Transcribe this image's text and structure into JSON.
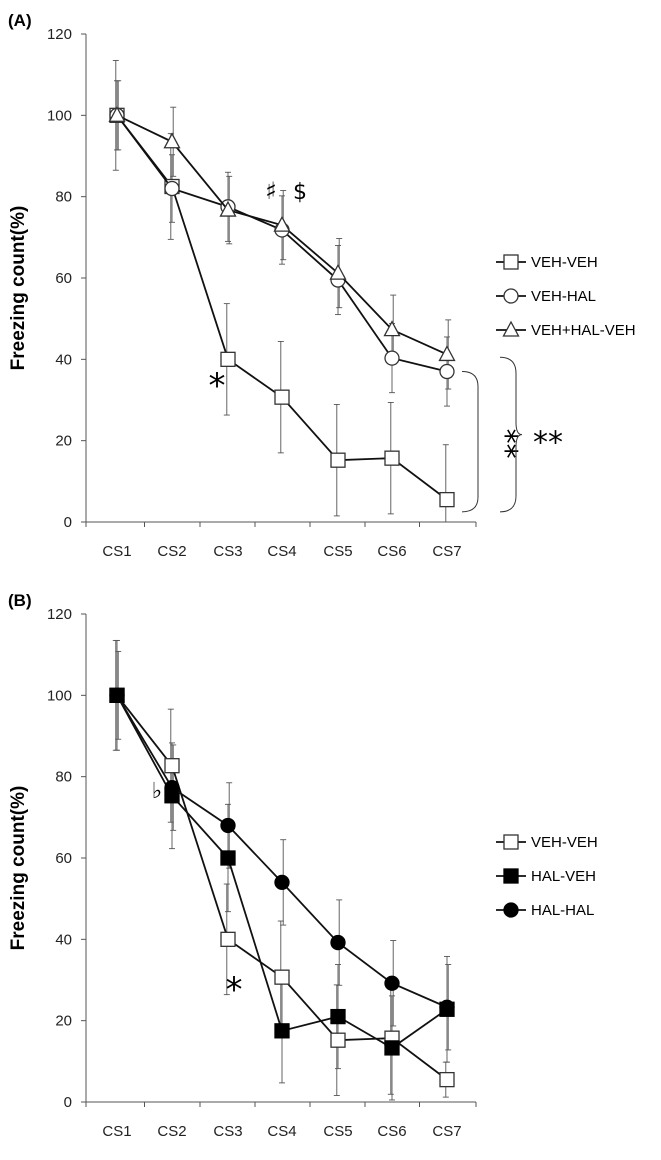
{
  "chart_data": [
    {
      "id": "A",
      "type": "line",
      "panel_label": "(A)",
      "ylabel": "Freezing count(%)",
      "xlabel": "",
      "ylim": [
        0,
        120
      ],
      "yticks": [
        0,
        20,
        40,
        60,
        80,
        100,
        120
      ],
      "categories": [
        "CS1",
        "CS2",
        "CS3",
        "CS4",
        "CS5",
        "CS6",
        "CS7"
      ],
      "legend_position": "right",
      "series": [
        {
          "name": "VEH-VEH",
          "marker": "square-open",
          "values": [
            100,
            82.5,
            40,
            30.7,
            15.2,
            15.7,
            5.5
          ],
          "errors": [
            13.5,
            13,
            13.7,
            13.7,
            13.7,
            13.7,
            13.5
          ]
        },
        {
          "name": "VEH-HAL",
          "marker": "circle-open",
          "values": [
            100,
            82,
            77.5,
            71.8,
            59.5,
            40.3,
            37
          ],
          "errors": [
            8.5,
            8.3,
            8.5,
            8.4,
            8.5,
            8.5,
            8.5
          ]
        },
        {
          "name": "VEH+HAL-VEH",
          "marker": "triangle-open",
          "values": [
            100,
            93.5,
            76.7,
            73,
            61.2,
            47.3,
            41.2
          ],
          "errors": [
            8.5,
            8.5,
            8.3,
            8.5,
            8.5,
            8.5,
            8.5
          ]
        }
      ],
      "annotations": [
        {
          "text": "*",
          "category": "CS3",
          "y": 33
        },
        {
          "text": "♯",
          "category": "CS4",
          "y": 80
        },
        {
          "text": "$",
          "category": "CS4",
          "y": 80
        },
        {
          "text": "**",
          "bracket": "VEH-VEH vs VEH-HAL (CS7)"
        },
        {
          "text": "**",
          "bracket": "VEH-VEH vs VEH+HAL-VEH (CS7)"
        }
      ]
    },
    {
      "id": "B",
      "type": "line",
      "panel_label": "(B)",
      "ylabel": "Freezing count(%)",
      "xlabel": "",
      "ylim": [
        0,
        120
      ],
      "yticks": [
        0,
        20,
        40,
        60,
        80,
        100,
        120
      ],
      "categories": [
        "CS1",
        "CS2",
        "CS3",
        "CS4",
        "CS5",
        "CS6",
        "CS7"
      ],
      "legend_position": "right",
      "series": [
        {
          "name": "VEH-VEH",
          "marker": "square-open",
          "values": [
            100,
            82.7,
            40,
            30.7,
            15.2,
            15.7,
            5.5
          ],
          "errors": [
            13.5,
            13.9,
            13.6,
            13.8,
            13.6,
            13.8,
            4.3
          ]
        },
        {
          "name": "HAL-VEH",
          "marker": "square-filled",
          "values": [
            100,
            75.3,
            60,
            17.5,
            21,
            13.3,
            22.8
          ],
          "errors": [
            13.5,
            13,
            13.2,
            12.8,
            12.8,
            12.8,
            13
          ]
        },
        {
          "name": "HAL-HAL",
          "marker": "circle-filled",
          "values": [
            100,
            77.3,
            68,
            54,
            39.2,
            29.2,
            23.3
          ],
          "errors": [
            10.8,
            10.5,
            10.5,
            10.5,
            10.5,
            10.5,
            10.5
          ]
        }
      ],
      "annotations": [
        {
          "text": "*",
          "category": "CS3",
          "y": 33
        },
        {
          "text": "♭",
          "category": "CS2",
          "y": 72
        },
        {
          "text": "♮",
          "category": "CS2",
          "y": 72
        }
      ]
    }
  ]
}
